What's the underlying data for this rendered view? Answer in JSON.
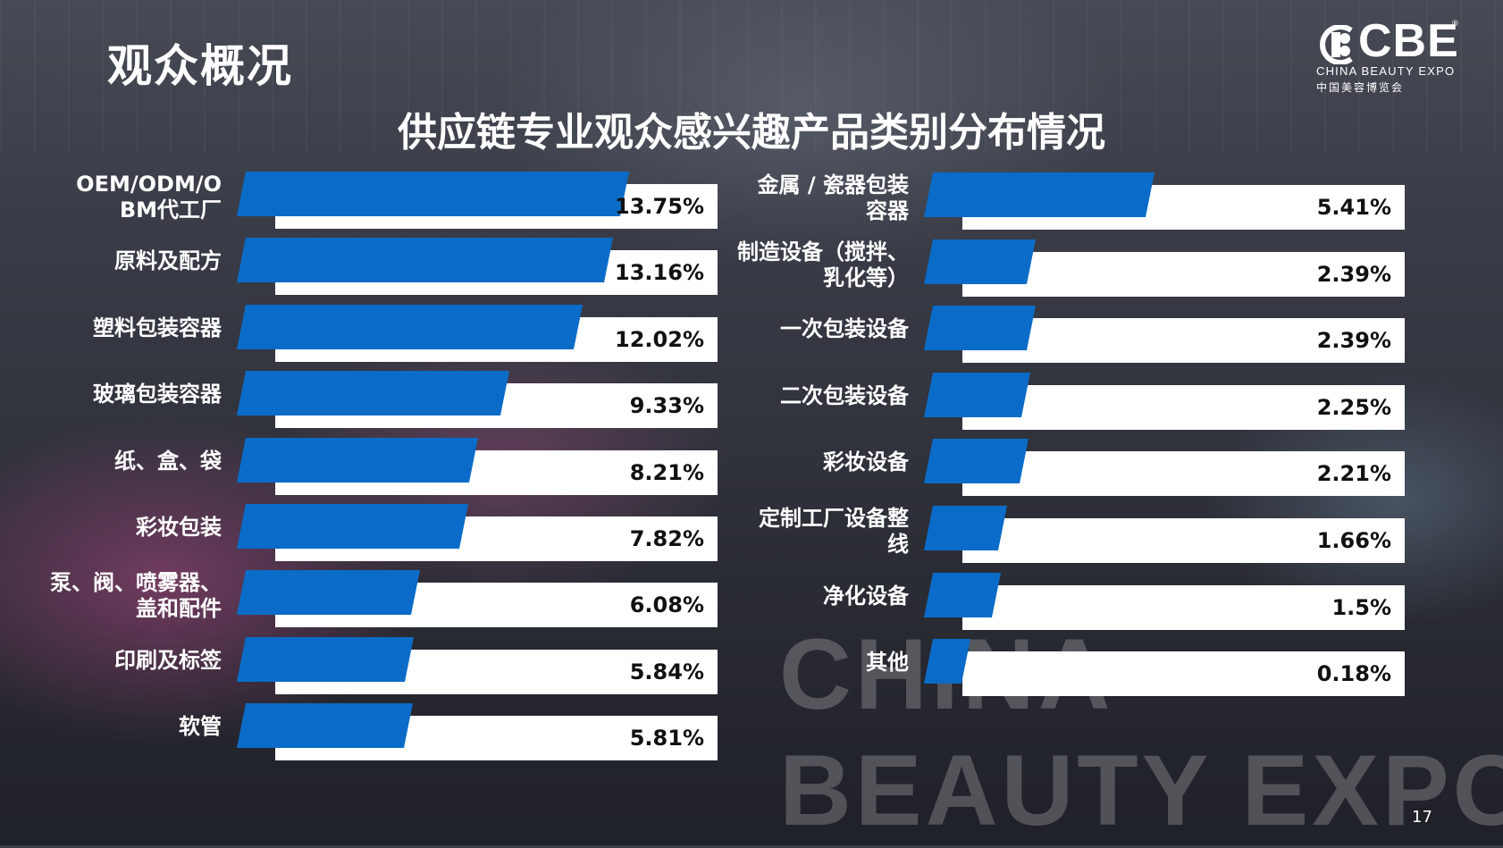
{
  "page_title": "观众概况",
  "logo": {
    "mark_text": "CBE",
    "reg_mark": "®",
    "english_name": "CHINA BEAUTY EXPO",
    "chinese_name": "中国美容博览会"
  },
  "watermark": {
    "line1": "CHINA",
    "line2": "BEAUTY EXPO"
  },
  "page_number": "17",
  "colors": {
    "bar": "#0a6cc8",
    "track": "#ffffff",
    "text": "#ffffff",
    "value_text": "#111111"
  },
  "chart_data": {
    "type": "bar",
    "orientation": "horizontal",
    "title": "供应链专业观众感兴趣产品类别分布情况",
    "unit": "%",
    "left_column": [
      {
        "category": [
          "OEM/ODM/O",
          "BM代工厂"
        ],
        "value": 13.75,
        "label": "13.75%"
      },
      {
        "category": [
          "原料及配方"
        ],
        "value": 13.16,
        "label": "13.16%"
      },
      {
        "category": [
          "塑料包装容器"
        ],
        "value": 12.02,
        "label": "12.02%"
      },
      {
        "category": [
          "玻璃包装容器"
        ],
        "value": 9.33,
        "label": "9.33%"
      },
      {
        "category": [
          "纸、盒、袋"
        ],
        "value": 8.21,
        "label": "8.21%"
      },
      {
        "category": [
          "彩妆包装"
        ],
        "value": 7.82,
        "label": "7.82%"
      },
      {
        "category": [
          "泵、阀、喷雾器、",
          "盖和配件"
        ],
        "value": 6.08,
        "label": "6.08%"
      },
      {
        "category": [
          "印刷及标签"
        ],
        "value": 5.84,
        "label": "5.84%"
      },
      {
        "category": [
          "软管"
        ],
        "value": 5.81,
        "label": "5.81%"
      }
    ],
    "right_column": [
      {
        "category": [
          "金属 / 瓷器包装",
          "容器"
        ],
        "value": 5.41,
        "label": "5.41%"
      },
      {
        "category": [
          "制造设备（搅拌、",
          "乳化等）"
        ],
        "value": 2.39,
        "label": "2.39%"
      },
      {
        "category": [
          "一次包装设备"
        ],
        "value": 2.39,
        "label": "2.39%"
      },
      {
        "category": [
          "二次包装设备"
        ],
        "value": 2.25,
        "label": "2.25%"
      },
      {
        "category": [
          "彩妆设备"
        ],
        "value": 2.21,
        "label": "2.21%"
      },
      {
        "category": [
          "定制工厂设备整",
          "线"
        ],
        "value": 1.66,
        "label": "1.66%"
      },
      {
        "category": [
          "净化设备"
        ],
        "value": 1.5,
        "label": "1.5%"
      },
      {
        "category": [
          "其他"
        ],
        "value": 0.18,
        "label": "0.18%"
      }
    ]
  }
}
